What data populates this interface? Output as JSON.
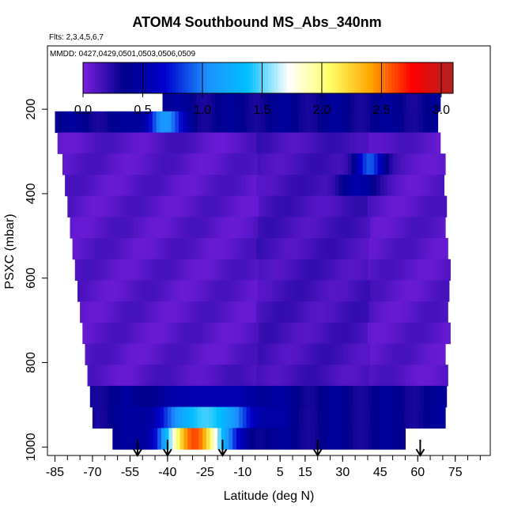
{
  "chart_data": {
    "type": "heatmap",
    "title": "ATOM4 Southbound MS_Abs_340nm",
    "subtitle": "Flts: 2,3,4,5,6,7",
    "annotation": "MMDD: 0427,0429,0501,0503,0506,0509",
    "xlabel": "Latitude (deg N)",
    "ylabel": "PSXC (mbar)",
    "xlim": [
      -88,
      89
    ],
    "ylim": [
      1020,
      50
    ],
    "x_ticks": [
      -85,
      -70,
      -55,
      -40,
      -25,
      -10,
      5,
      15,
      30,
      45,
      60,
      75
    ],
    "y_ticks": [
      200,
      400,
      600,
      800,
      1000
    ],
    "colorbar": {
      "min": 0.0,
      "max": 3.1,
      "ticks": [
        0.0,
        0.5,
        1.0,
        1.5,
        2.0,
        2.5,
        3.0
      ],
      "tick_labels": [
        "0.0",
        "0.5",
        "1.0",
        "1.5",
        "2.0",
        "2.5",
        "3.0"
      ],
      "colors": [
        "#7a1fe0",
        "#00008b",
        "#0000cd",
        "#1e90ff",
        "#00bfff",
        "#ffffff",
        "#ffff66",
        "#ffa500",
        "#ff0000",
        "#b22222"
      ]
    },
    "background_value": 0.1,
    "rows": [
      {
        "p": 180,
        "x0": -42,
        "x1": 68
      },
      {
        "p": 230,
        "x0": -85,
        "x1": 68
      },
      {
        "p": 280,
        "x0": -84,
        "x1": 69
      },
      {
        "p": 330,
        "x0": -82,
        "x1": 70
      },
      {
        "p": 380,
        "x0": -81,
        "x1": 70
      },
      {
        "p": 430,
        "x0": -80,
        "x1": 71
      },
      {
        "p": 480,
        "x0": -79,
        "x1": 71
      },
      {
        "p": 530,
        "x0": -78,
        "x1": 72
      },
      {
        "p": 580,
        "x0": -77,
        "x1": 72
      },
      {
        "p": 630,
        "x0": -76,
        "x1": 72
      },
      {
        "p": 680,
        "x0": -75,
        "x1": 72
      },
      {
        "p": 730,
        "x0": -74,
        "x1": 72
      },
      {
        "p": 780,
        "x0": -73,
        "x1": 71
      },
      {
        "p": 830,
        "x0": -72,
        "x1": 71
      },
      {
        "p": 880,
        "x0": -71,
        "x1": 71
      },
      {
        "p": 930,
        "x0": -70,
        "x1": 70
      },
      {
        "p": 980,
        "x0": -62,
        "x1": 54
      }
    ],
    "features": [
      {
        "lat": -42,
        "p": 230,
        "value": 1.1,
        "width": 7,
        "depth": 28
      },
      {
        "lat": 40,
        "p": 330,
        "value": 0.9,
        "width": 6,
        "depth": 28
      },
      {
        "lat": 35,
        "p": 380,
        "value": 0.5,
        "width": 8,
        "depth": 28
      },
      {
        "lat": -25,
        "p": 930,
        "value": 1.4,
        "width": 17,
        "depth": 30
      },
      {
        "lat": -30,
        "p": 980,
        "value": 2.6,
        "width": 12,
        "depth": 30
      },
      {
        "lat": -22,
        "p": 880,
        "value": 0.55,
        "width": 22,
        "depth": 30
      }
    ],
    "flight_markers_lat": [
      -52,
      -40,
      -18,
      20,
      61
    ]
  }
}
